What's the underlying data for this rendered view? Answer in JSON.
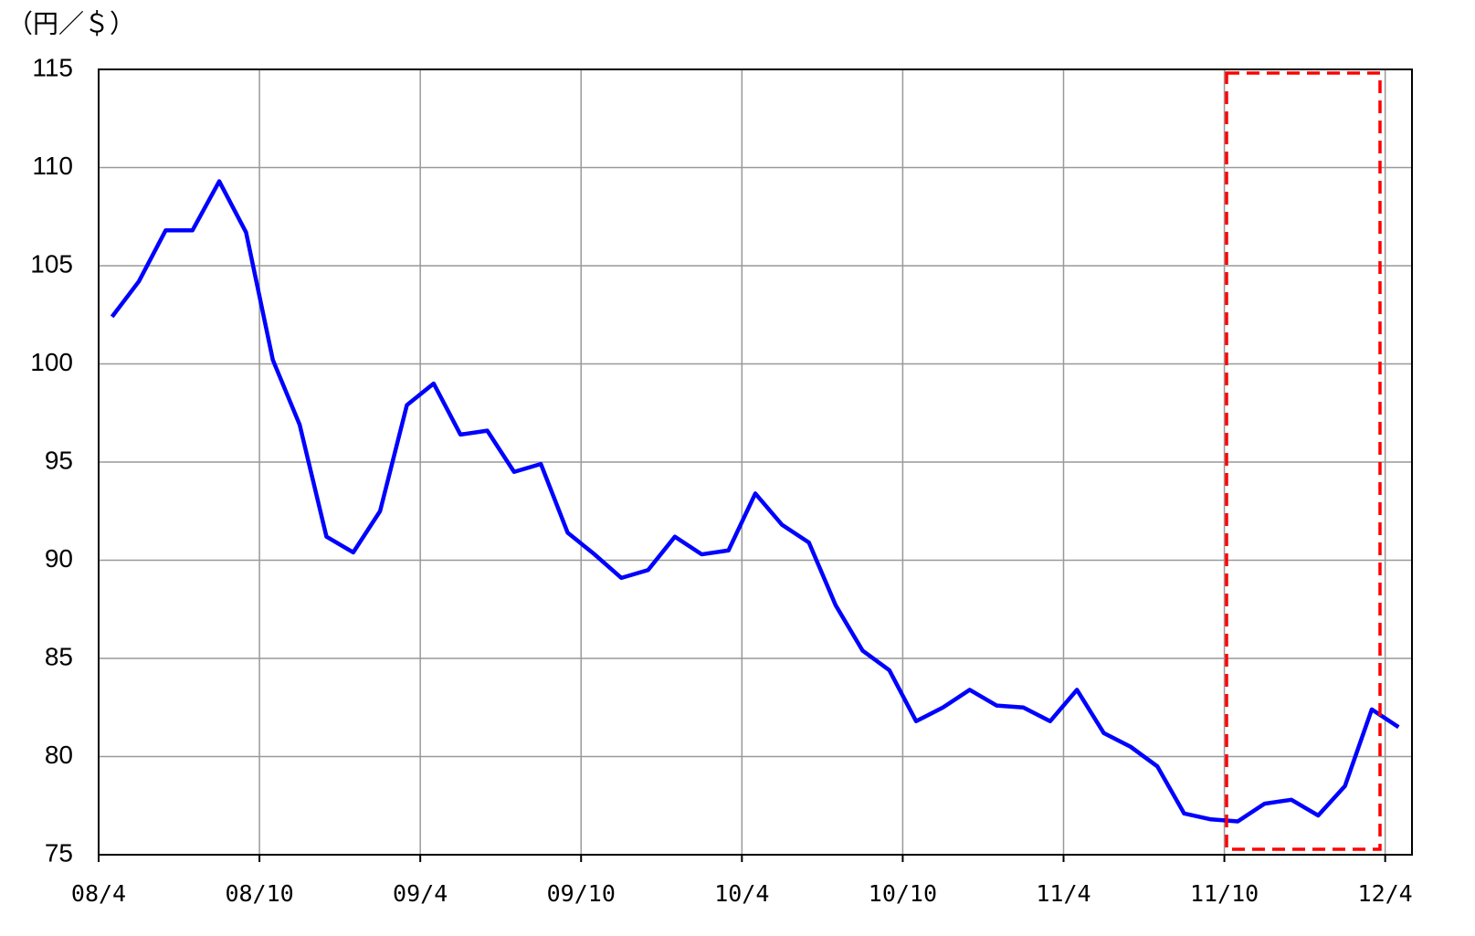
{
  "chart_data": {
    "type": "line",
    "ylabel": "（円／＄）",
    "categories": [
      "08/4",
      null,
      null,
      null,
      null,
      null,
      "08/10",
      null,
      null,
      null,
      null,
      null,
      "09/4",
      null,
      null,
      null,
      null,
      null,
      "09/10",
      null,
      null,
      null,
      null,
      null,
      "10/4",
      null,
      null,
      null,
      null,
      null,
      "10/10",
      null,
      null,
      null,
      null,
      null,
      "11/4",
      null,
      null,
      null,
      null,
      null,
      "11/10",
      null,
      null,
      null,
      null,
      null,
      "12/4"
    ],
    "series": [
      {
        "name": "円／＄",
        "color": "#0000ff",
        "values": [
          102.4,
          104.2,
          106.8,
          106.8,
          109.3,
          106.7,
          100.2,
          96.9,
          91.2,
          90.4,
          92.5,
          97.9,
          99.0,
          96.4,
          96.6,
          94.5,
          94.9,
          91.4,
          90.3,
          89.1,
          89.5,
          91.2,
          90.3,
          90.5,
          93.4,
          91.8,
          90.9,
          87.7,
          85.4,
          84.4,
          81.8,
          82.5,
          83.4,
          82.6,
          82.5,
          81.8,
          83.4,
          81.2,
          80.5,
          79.5,
          77.1,
          76.8,
          76.7,
          77.6,
          77.8,
          77.0,
          78.5,
          82.4,
          81.5
        ]
      }
    ],
    "ylim": [
      75,
      115
    ],
    "yticks": [
      75,
      80,
      85,
      90,
      95,
      100,
      105,
      110,
      115
    ],
    "grid": true
  }
}
